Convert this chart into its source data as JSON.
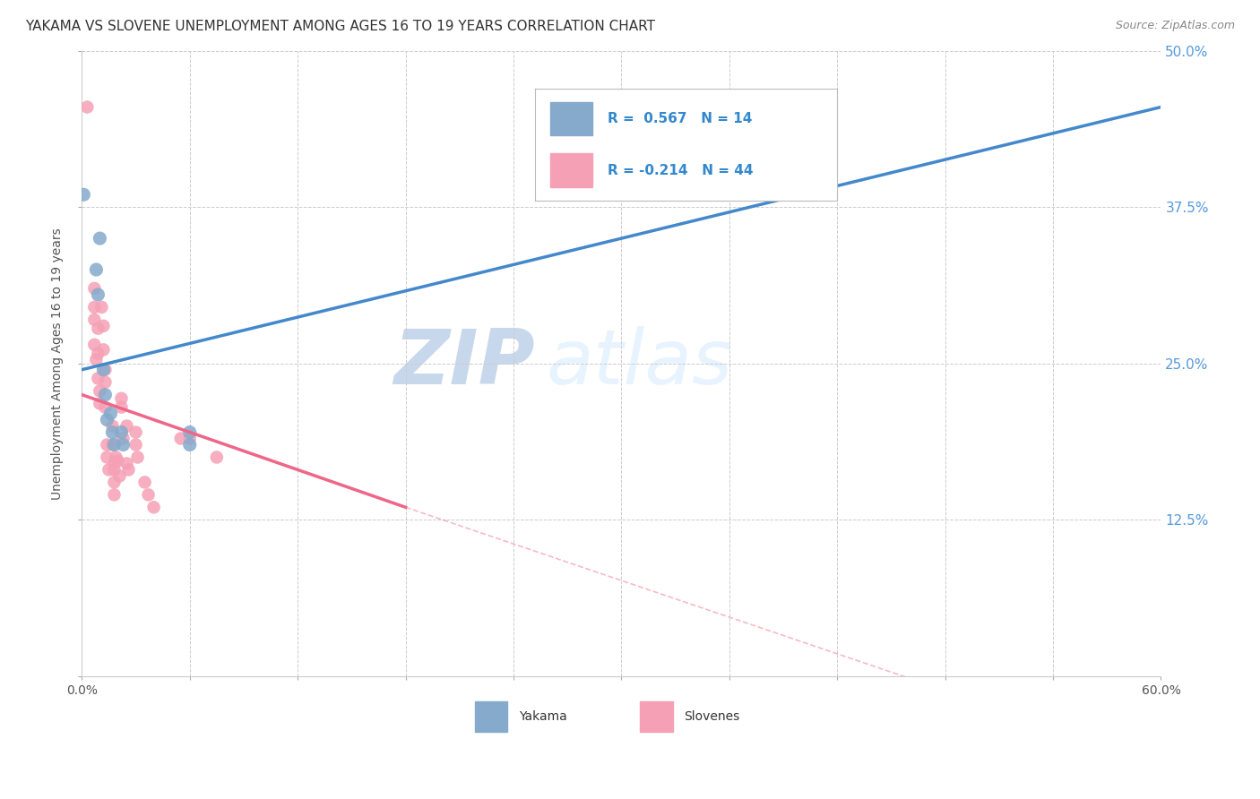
{
  "title": "YAKAMA VS SLOVENE UNEMPLOYMENT AMONG AGES 16 TO 19 YEARS CORRELATION CHART",
  "source": "Source: ZipAtlas.com",
  "ylabel": "Unemployment Among Ages 16 to 19 years",
  "xlim": [
    0.0,
    0.6
  ],
  "ylim": [
    0.0,
    0.5
  ],
  "xticks": [
    0.0,
    0.06,
    0.12,
    0.18,
    0.24,
    0.3,
    0.36,
    0.42,
    0.48,
    0.54,
    0.6
  ],
  "yticks": [
    0.0,
    0.125,
    0.25,
    0.375,
    0.5
  ],
  "xticklabels_show": [
    "0.0%",
    "60.0%"
  ],
  "yticklabels": [
    "",
    "12.5%",
    "25.0%",
    "37.5%",
    "50.0%"
  ],
  "yakama_color": "#85AACC",
  "slovene_color": "#F5A0B5",
  "trend_yakama_color": "#4488CC",
  "trend_slovene_color": "#EE6688",
  "legend_labels": [
    "Yakama",
    "Slovenes"
  ],
  "R_yakama": 0.567,
  "N_yakama": 14,
  "R_slovene": -0.214,
  "N_slovene": 44,
  "yakama_points": [
    [
      0.001,
      0.385
    ],
    [
      0.008,
      0.325
    ],
    [
      0.009,
      0.305
    ],
    [
      0.01,
      0.35
    ],
    [
      0.012,
      0.245
    ],
    [
      0.013,
      0.225
    ],
    [
      0.014,
      0.205
    ],
    [
      0.016,
      0.21
    ],
    [
      0.017,
      0.195
    ],
    [
      0.018,
      0.185
    ],
    [
      0.022,
      0.195
    ],
    [
      0.023,
      0.185
    ],
    [
      0.06,
      0.195
    ],
    [
      0.06,
      0.185
    ]
  ],
  "slovene_points": [
    [
      0.003,
      0.455
    ],
    [
      0.007,
      0.31
    ],
    [
      0.007,
      0.295
    ],
    [
      0.007,
      0.285
    ],
    [
      0.007,
      0.265
    ],
    [
      0.008,
      0.253
    ],
    [
      0.009,
      0.278
    ],
    [
      0.009,
      0.258
    ],
    [
      0.009,
      0.238
    ],
    [
      0.01,
      0.228
    ],
    [
      0.01,
      0.218
    ],
    [
      0.011,
      0.295
    ],
    [
      0.012,
      0.28
    ],
    [
      0.012,
      0.261
    ],
    [
      0.013,
      0.245
    ],
    [
      0.013,
      0.235
    ],
    [
      0.013,
      0.215
    ],
    [
      0.014,
      0.185
    ],
    [
      0.014,
      0.175
    ],
    [
      0.015,
      0.165
    ],
    [
      0.017,
      0.2
    ],
    [
      0.017,
      0.185
    ],
    [
      0.018,
      0.17
    ],
    [
      0.018,
      0.165
    ],
    [
      0.018,
      0.155
    ],
    [
      0.018,
      0.145
    ],
    [
      0.019,
      0.175
    ],
    [
      0.02,
      0.172
    ],
    [
      0.021,
      0.16
    ],
    [
      0.022,
      0.222
    ],
    [
      0.022,
      0.215
    ],
    [
      0.023,
      0.19
    ],
    [
      0.025,
      0.2
    ],
    [
      0.025,
      0.17
    ],
    [
      0.026,
      0.165
    ],
    [
      0.03,
      0.195
    ],
    [
      0.03,
      0.185
    ],
    [
      0.031,
      0.175
    ],
    [
      0.035,
      0.155
    ],
    [
      0.037,
      0.145
    ],
    [
      0.04,
      0.135
    ],
    [
      0.055,
      0.19
    ],
    [
      0.06,
      0.19
    ],
    [
      0.075,
      0.175
    ]
  ],
  "yakama_trend": [
    0.0,
    0.6,
    0.245,
    0.455
  ],
  "slovene_trend_solid": [
    0.0,
    0.18,
    0.225,
    0.135
  ],
  "slovene_trend_dash": [
    0.18,
    0.6,
    0.135,
    -0.07
  ],
  "watermark_zip": "ZIP",
  "watermark_atlas": "atlas",
  "background_color": "#FFFFFF",
  "grid_color": "#CCCCCC"
}
